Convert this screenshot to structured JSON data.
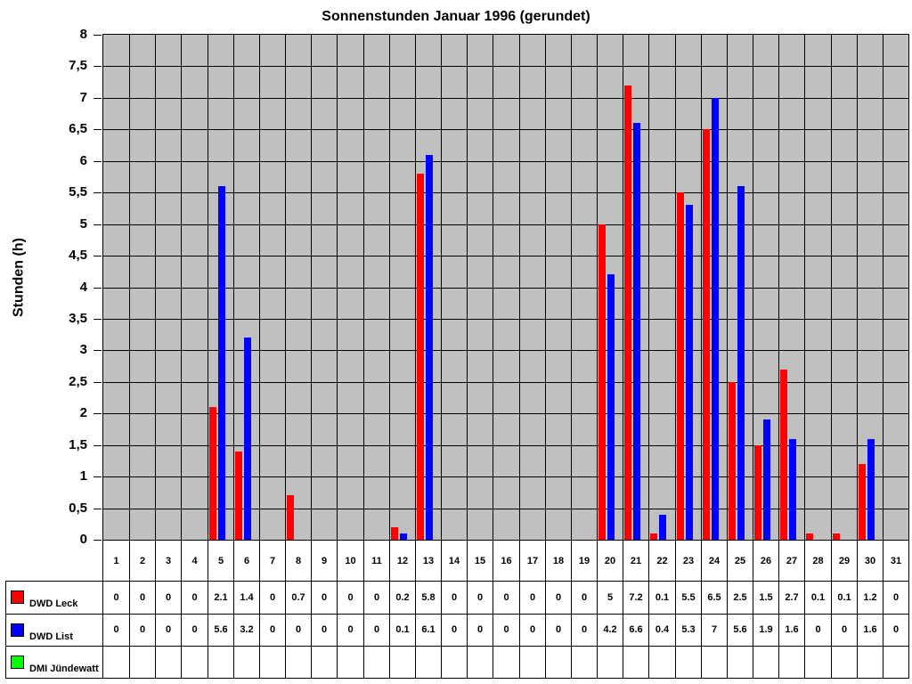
{
  "title": "Sonnenstunden Januar 1996 (gerundet)",
  "colors": {
    "plot_background": "#C0C0C0",
    "grid": "#000000",
    "series_leck": "#FF0000",
    "series_list": "#0000FF",
    "series_jundewatt": "#00FF00"
  },
  "chart_data": {
    "type": "bar",
    "title": "Sonnenstunden Januar 1996 (gerundet)",
    "xlabel": "",
    "ylabel": "Stunden (h)",
    "ylim": [
      0,
      8
    ],
    "ytick_step": 0.5,
    "ytick_labels": [
      "8",
      "7,5",
      "7",
      "6,5",
      "6",
      "5,5",
      "5",
      "4,5",
      "4",
      "3,5",
      "3",
      "2,5",
      "2",
      "1,5",
      "1",
      "0,5",
      "0"
    ],
    "grid": true,
    "legend_position": "table-left",
    "categories": [
      "1",
      "2",
      "3",
      "4",
      "5",
      "6",
      "7",
      "8",
      "9",
      "10",
      "11",
      "12",
      "13",
      "14",
      "15",
      "16",
      "17",
      "18",
      "19",
      "20",
      "21",
      "22",
      "23",
      "24",
      "25",
      "26",
      "27",
      "28",
      "29",
      "30",
      "31"
    ],
    "series": [
      {
        "name": "DWD Leck",
        "color": "#FF0000",
        "values": [
          0,
          0,
          0,
          0,
          2.1,
          1.4,
          0,
          0.7,
          0,
          0,
          0,
          0.2,
          5.8,
          0,
          0,
          0,
          0,
          0,
          0,
          5,
          7.2,
          0.1,
          5.5,
          6.5,
          2.5,
          1.5,
          2.7,
          0.1,
          0.1,
          1.2,
          0
        ],
        "display": [
          "0",
          "0",
          "0",
          "0",
          "2.1",
          "1.4",
          "0",
          "0.7",
          "0",
          "0",
          "0",
          "0.2",
          "5.8",
          "0",
          "0",
          "0",
          "0",
          "0",
          "0",
          "5",
          "7.2",
          "0.1",
          "5.5",
          "6.5",
          "2.5",
          "1.5",
          "2.7",
          "0.1",
          "0.1",
          "1.2",
          "0"
        ]
      },
      {
        "name": "DWD List",
        "color": "#0000FF",
        "values": [
          0,
          0,
          0,
          0,
          5.6,
          3.2,
          0,
          0,
          0,
          0,
          0,
          0.1,
          6.1,
          0,
          0,
          0,
          0,
          0,
          0,
          4.2,
          6.6,
          0.4,
          5.3,
          7,
          5.6,
          1.9,
          1.6,
          0,
          0,
          1.6,
          0
        ],
        "display": [
          "0",
          "0",
          "0",
          "0",
          "5.6",
          "3.2",
          "0",
          "0",
          "0",
          "0",
          "0",
          "0.1",
          "6.1",
          "0",
          "0",
          "0",
          "0",
          "0",
          "0",
          "4.2",
          "6.6",
          "0.4",
          "5.3",
          "7",
          "5.6",
          "1.9",
          "1.6",
          "0",
          "0",
          "1.6",
          "0"
        ]
      },
      {
        "name": "DMI Jündewatt",
        "color": "#00FF00",
        "values": [
          null,
          null,
          null,
          null,
          null,
          null,
          null,
          null,
          null,
          null,
          null,
          null,
          null,
          null,
          null,
          null,
          null,
          null,
          null,
          null,
          null,
          null,
          null,
          null,
          null,
          null,
          null,
          null,
          null,
          null,
          null
        ],
        "display": [
          "",
          "",
          "",
          "",
          "",
          "",
          "",
          "",
          "",
          "",
          "",
          "",
          "",
          "",
          "",
          "",
          "",
          "",
          "",
          "",
          "",
          "",
          "",
          "",
          "",
          "",
          "",
          "",
          "",
          "",
          ""
        ]
      }
    ]
  }
}
